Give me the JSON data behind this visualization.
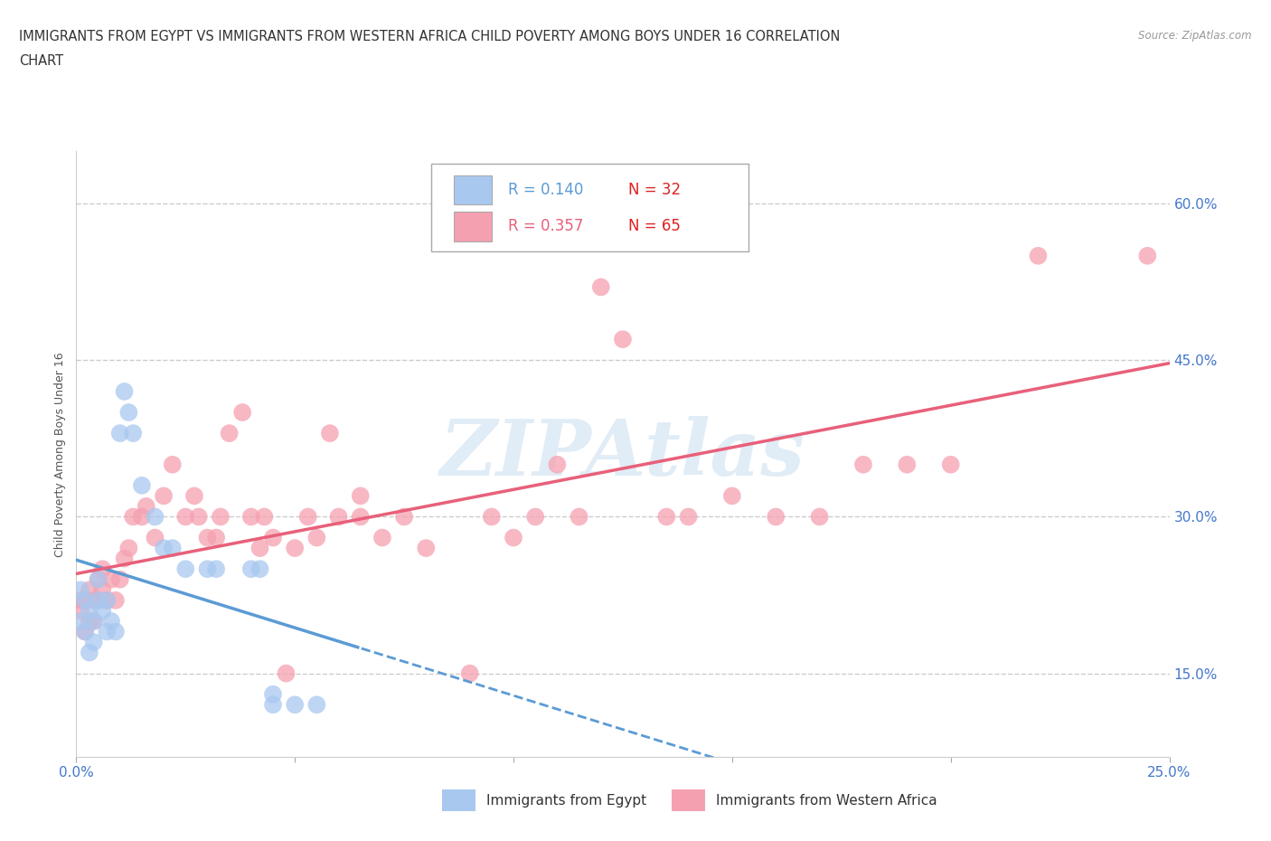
{
  "title_line1": "IMMIGRANTS FROM EGYPT VS IMMIGRANTS FROM WESTERN AFRICA CHILD POVERTY AMONG BOYS UNDER 16 CORRELATION",
  "title_line2": "CHART",
  "source": "Source: ZipAtlas.com",
  "ylabel": "Child Poverty Among Boys Under 16",
  "xlim": [
    0.0,
    0.25
  ],
  "ylim": [
    0.07,
    0.65
  ],
  "xticks": [
    0.0,
    0.05,
    0.1,
    0.15,
    0.2,
    0.25
  ],
  "xticklabels": [
    "0.0%",
    "",
    "",
    "",
    "",
    "25.0%"
  ],
  "yticks_right": [
    0.15,
    0.3,
    0.45,
    0.6
  ],
  "ytick_right_labels": [
    "15.0%",
    "30.0%",
    "45.0%",
    "60.0%"
  ],
  "legend_r1": "R = 0.140",
  "legend_n1": "N = 32",
  "legend_r2": "R = 0.357",
  "legend_n2": "N = 65",
  "color_egypt": "#a8c8f0",
  "color_w_africa": "#f5a0b0",
  "color_egypt_line": "#5b9bd5",
  "color_w_africa_line": "#e8607a",
  "color_tick": "#4477cc",
  "watermark_text": "ZIPAtlas",
  "egypt_x": [
    0.001,
    0.001,
    0.002,
    0.002,
    0.003,
    0.003,
    0.004,
    0.004,
    0.005,
    0.005,
    0.006,
    0.007,
    0.007,
    0.008,
    0.009,
    0.01,
    0.011,
    0.012,
    0.013,
    0.015,
    0.018,
    0.02,
    0.022,
    0.025,
    0.03,
    0.032,
    0.04,
    0.042,
    0.045,
    0.045,
    0.05,
    0.055
  ],
  "egypt_y": [
    0.2,
    0.23,
    0.19,
    0.22,
    0.17,
    0.21,
    0.2,
    0.18,
    0.22,
    0.24,
    0.21,
    0.19,
    0.22,
    0.2,
    0.19,
    0.38,
    0.42,
    0.4,
    0.38,
    0.33,
    0.3,
    0.27,
    0.27,
    0.25,
    0.25,
    0.25,
    0.25,
    0.25,
    0.12,
    0.13,
    0.12,
    0.12
  ],
  "w_africa_x": [
    0.001,
    0.001,
    0.002,
    0.002,
    0.003,
    0.003,
    0.004,
    0.004,
    0.005,
    0.005,
    0.006,
    0.006,
    0.007,
    0.008,
    0.009,
    0.01,
    0.011,
    0.012,
    0.013,
    0.015,
    0.016,
    0.018,
    0.02,
    0.022,
    0.025,
    0.027,
    0.028,
    0.03,
    0.032,
    0.033,
    0.035,
    0.038,
    0.04,
    0.042,
    0.043,
    0.045,
    0.048,
    0.05,
    0.053,
    0.055,
    0.058,
    0.06,
    0.065,
    0.065,
    0.07,
    0.075,
    0.08,
    0.09,
    0.095,
    0.1,
    0.105,
    0.11,
    0.115,
    0.12,
    0.125,
    0.135,
    0.14,
    0.15,
    0.16,
    0.17,
    0.18,
    0.19,
    0.2,
    0.22,
    0.245
  ],
  "w_africa_y": [
    0.21,
    0.22,
    0.19,
    0.22,
    0.2,
    0.23,
    0.2,
    0.22,
    0.22,
    0.24,
    0.23,
    0.25,
    0.22,
    0.24,
    0.22,
    0.24,
    0.26,
    0.27,
    0.3,
    0.3,
    0.31,
    0.28,
    0.32,
    0.35,
    0.3,
    0.32,
    0.3,
    0.28,
    0.28,
    0.3,
    0.38,
    0.4,
    0.3,
    0.27,
    0.3,
    0.28,
    0.15,
    0.27,
    0.3,
    0.28,
    0.38,
    0.3,
    0.3,
    0.32,
    0.28,
    0.3,
    0.27,
    0.15,
    0.3,
    0.28,
    0.3,
    0.35,
    0.3,
    0.52,
    0.47,
    0.3,
    0.3,
    0.32,
    0.3,
    0.3,
    0.35,
    0.35,
    0.35,
    0.55,
    0.55
  ],
  "grid_color": "#cccccc",
  "background_color": "#ffffff",
  "title_color": "#333333",
  "title_fontsize": 10.5,
  "ylabel_fontsize": 9,
  "tick_fontsize": 11
}
